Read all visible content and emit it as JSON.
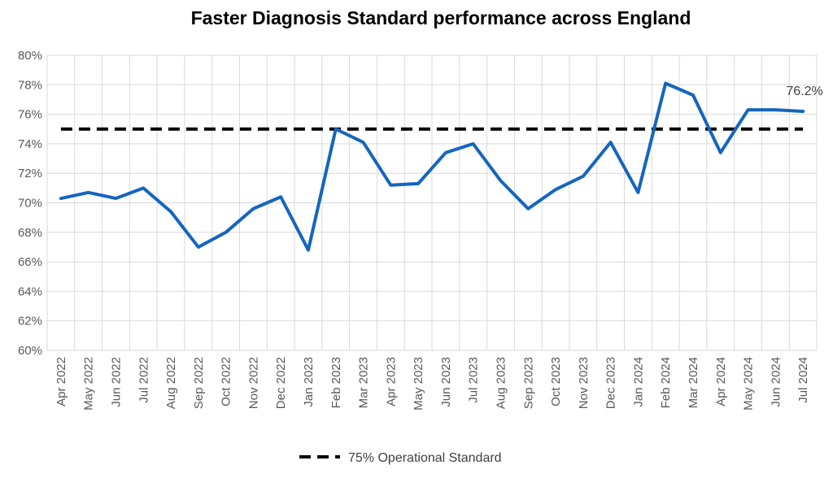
{
  "chart_data": {
    "type": "line",
    "title": "Faster Diagnosis Standard performance across England",
    "categories": [
      "Apr 2022",
      "May 2022",
      "Jun 2022",
      "Jul 2022",
      "Aug 2022",
      "Sep 2022",
      "Oct 2022",
      "Nov 2022",
      "Dec 2022",
      "Jan 2023",
      "Feb 2023",
      "Mar 2023",
      "Apr 2023",
      "May 2023",
      "Jun 2023",
      "Jul 2023",
      "Aug 2023",
      "Sep 2023",
      "Oct 2023",
      "Nov 2023",
      "Dec 2023",
      "Jan 2024",
      "Feb 2024",
      "Mar 2024",
      "Apr 2024",
      "May 2024",
      "Jun 2024",
      "Jul 2024"
    ],
    "series": [
      {
        "values": [
          70.3,
          70.7,
          70.3,
          71.0,
          69.4,
          67.0,
          68.0,
          69.6,
          70.4,
          66.8,
          75.0,
          74.1,
          71.2,
          71.3,
          73.4,
          74.0,
          71.5,
          69.6,
          70.9,
          71.8,
          74.1,
          70.7,
          78.1,
          77.3,
          73.4,
          76.3,
          76.3,
          76.2
        ],
        "color": "#1565c0",
        "end_label": "76.2%"
      },
      {
        "name": "75% Operational Standard",
        "values": [
          75,
          75,
          75,
          75,
          75,
          75,
          75,
          75,
          75,
          75,
          75,
          75,
          75,
          75,
          75,
          75,
          75,
          75,
          75,
          75,
          75,
          75,
          75,
          75,
          75,
          75,
          75,
          75
        ],
        "color": "#000000",
        "style": "dashed"
      }
    ],
    "ylim": [
      60,
      80
    ],
    "yticks": [
      "60%",
      "62%",
      "64%",
      "66%",
      "68%",
      "70%",
      "72%",
      "74%",
      "76%",
      "78%",
      "80%"
    ],
    "grid": true,
    "legend": "bottom-center"
  }
}
